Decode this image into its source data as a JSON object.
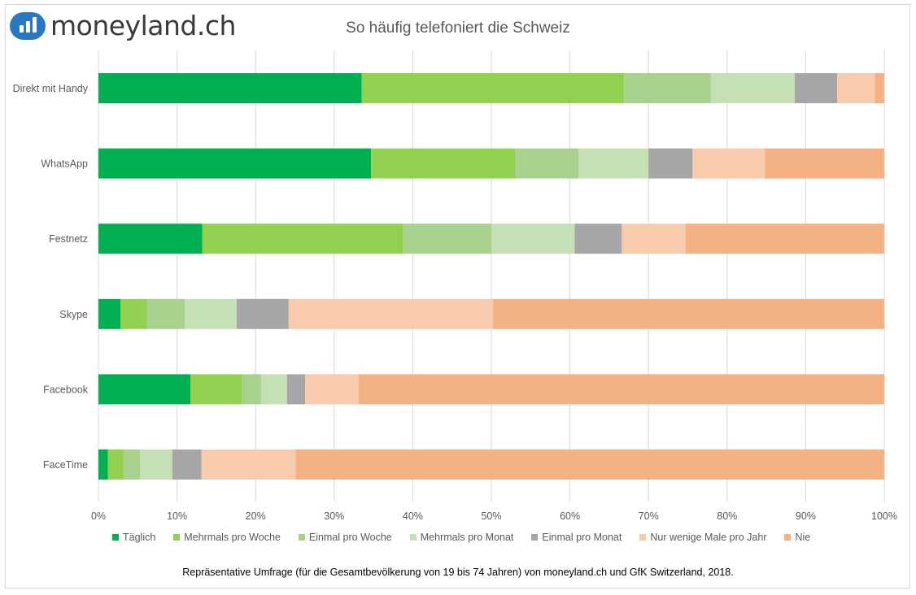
{
  "logo": {
    "text": "moneyland.ch"
  },
  "chart_data": {
    "type": "bar",
    "orientation": "horizontal",
    "stacked": "percent",
    "title": "So häufig telefoniert die Schweiz",
    "categories": [
      "Direkt mit Handy",
      "WhatsApp",
      "Festnetz",
      "Skype",
      "Facebook",
      "FaceTime"
    ],
    "xlim": [
      0,
      100
    ],
    "x_ticks": [
      "0%",
      "10%",
      "20%",
      "30%",
      "40%",
      "50%",
      "60%",
      "70%",
      "80%",
      "90%",
      "100%"
    ],
    "grid": "vertical",
    "legend_position": "bottom",
    "series": [
      {
        "name": "Täglich",
        "color": "#00b050",
        "values": [
          33.5,
          34.7,
          13.2,
          2.8,
          11.7,
          1.2
        ]
      },
      {
        "name": "Mehrmals pro Woche",
        "color": "#92d050",
        "values": [
          33.4,
          18.3,
          25.6,
          3.4,
          6.6,
          2.0
        ]
      },
      {
        "name": "Einmal pro Woche",
        "color": "#a9d18e",
        "values": [
          11.0,
          8.1,
          11.2,
          4.8,
          2.4,
          2.1
        ]
      },
      {
        "name": "Mehrmals pro Monat",
        "color": "#c5e0b4",
        "values": [
          10.7,
          8.9,
          10.6,
          6.6,
          3.3,
          4.1
        ]
      },
      {
        "name": "Einmal pro Monat",
        "color": "#a6a6a6",
        "values": [
          5.4,
          5.6,
          6.0,
          6.6,
          2.3,
          3.7
        ]
      },
      {
        "name": "Nur wenige Male pro Jahr",
        "color": "#f8cbad",
        "values": [
          4.8,
          9.2,
          8.1,
          26.0,
          6.8,
          12.0
        ]
      },
      {
        "name": "Nie",
        "color": "#f4b183",
        "values": [
          1.2,
          15.2,
          25.3,
          49.8,
          66.9,
          74.9
        ]
      }
    ]
  },
  "footnote": "Repräsentative Umfrage (für die Gesamtbevölkerung von 19 bis 74 Jahren) von moneyland.ch und GfK Switzerland, 2018."
}
